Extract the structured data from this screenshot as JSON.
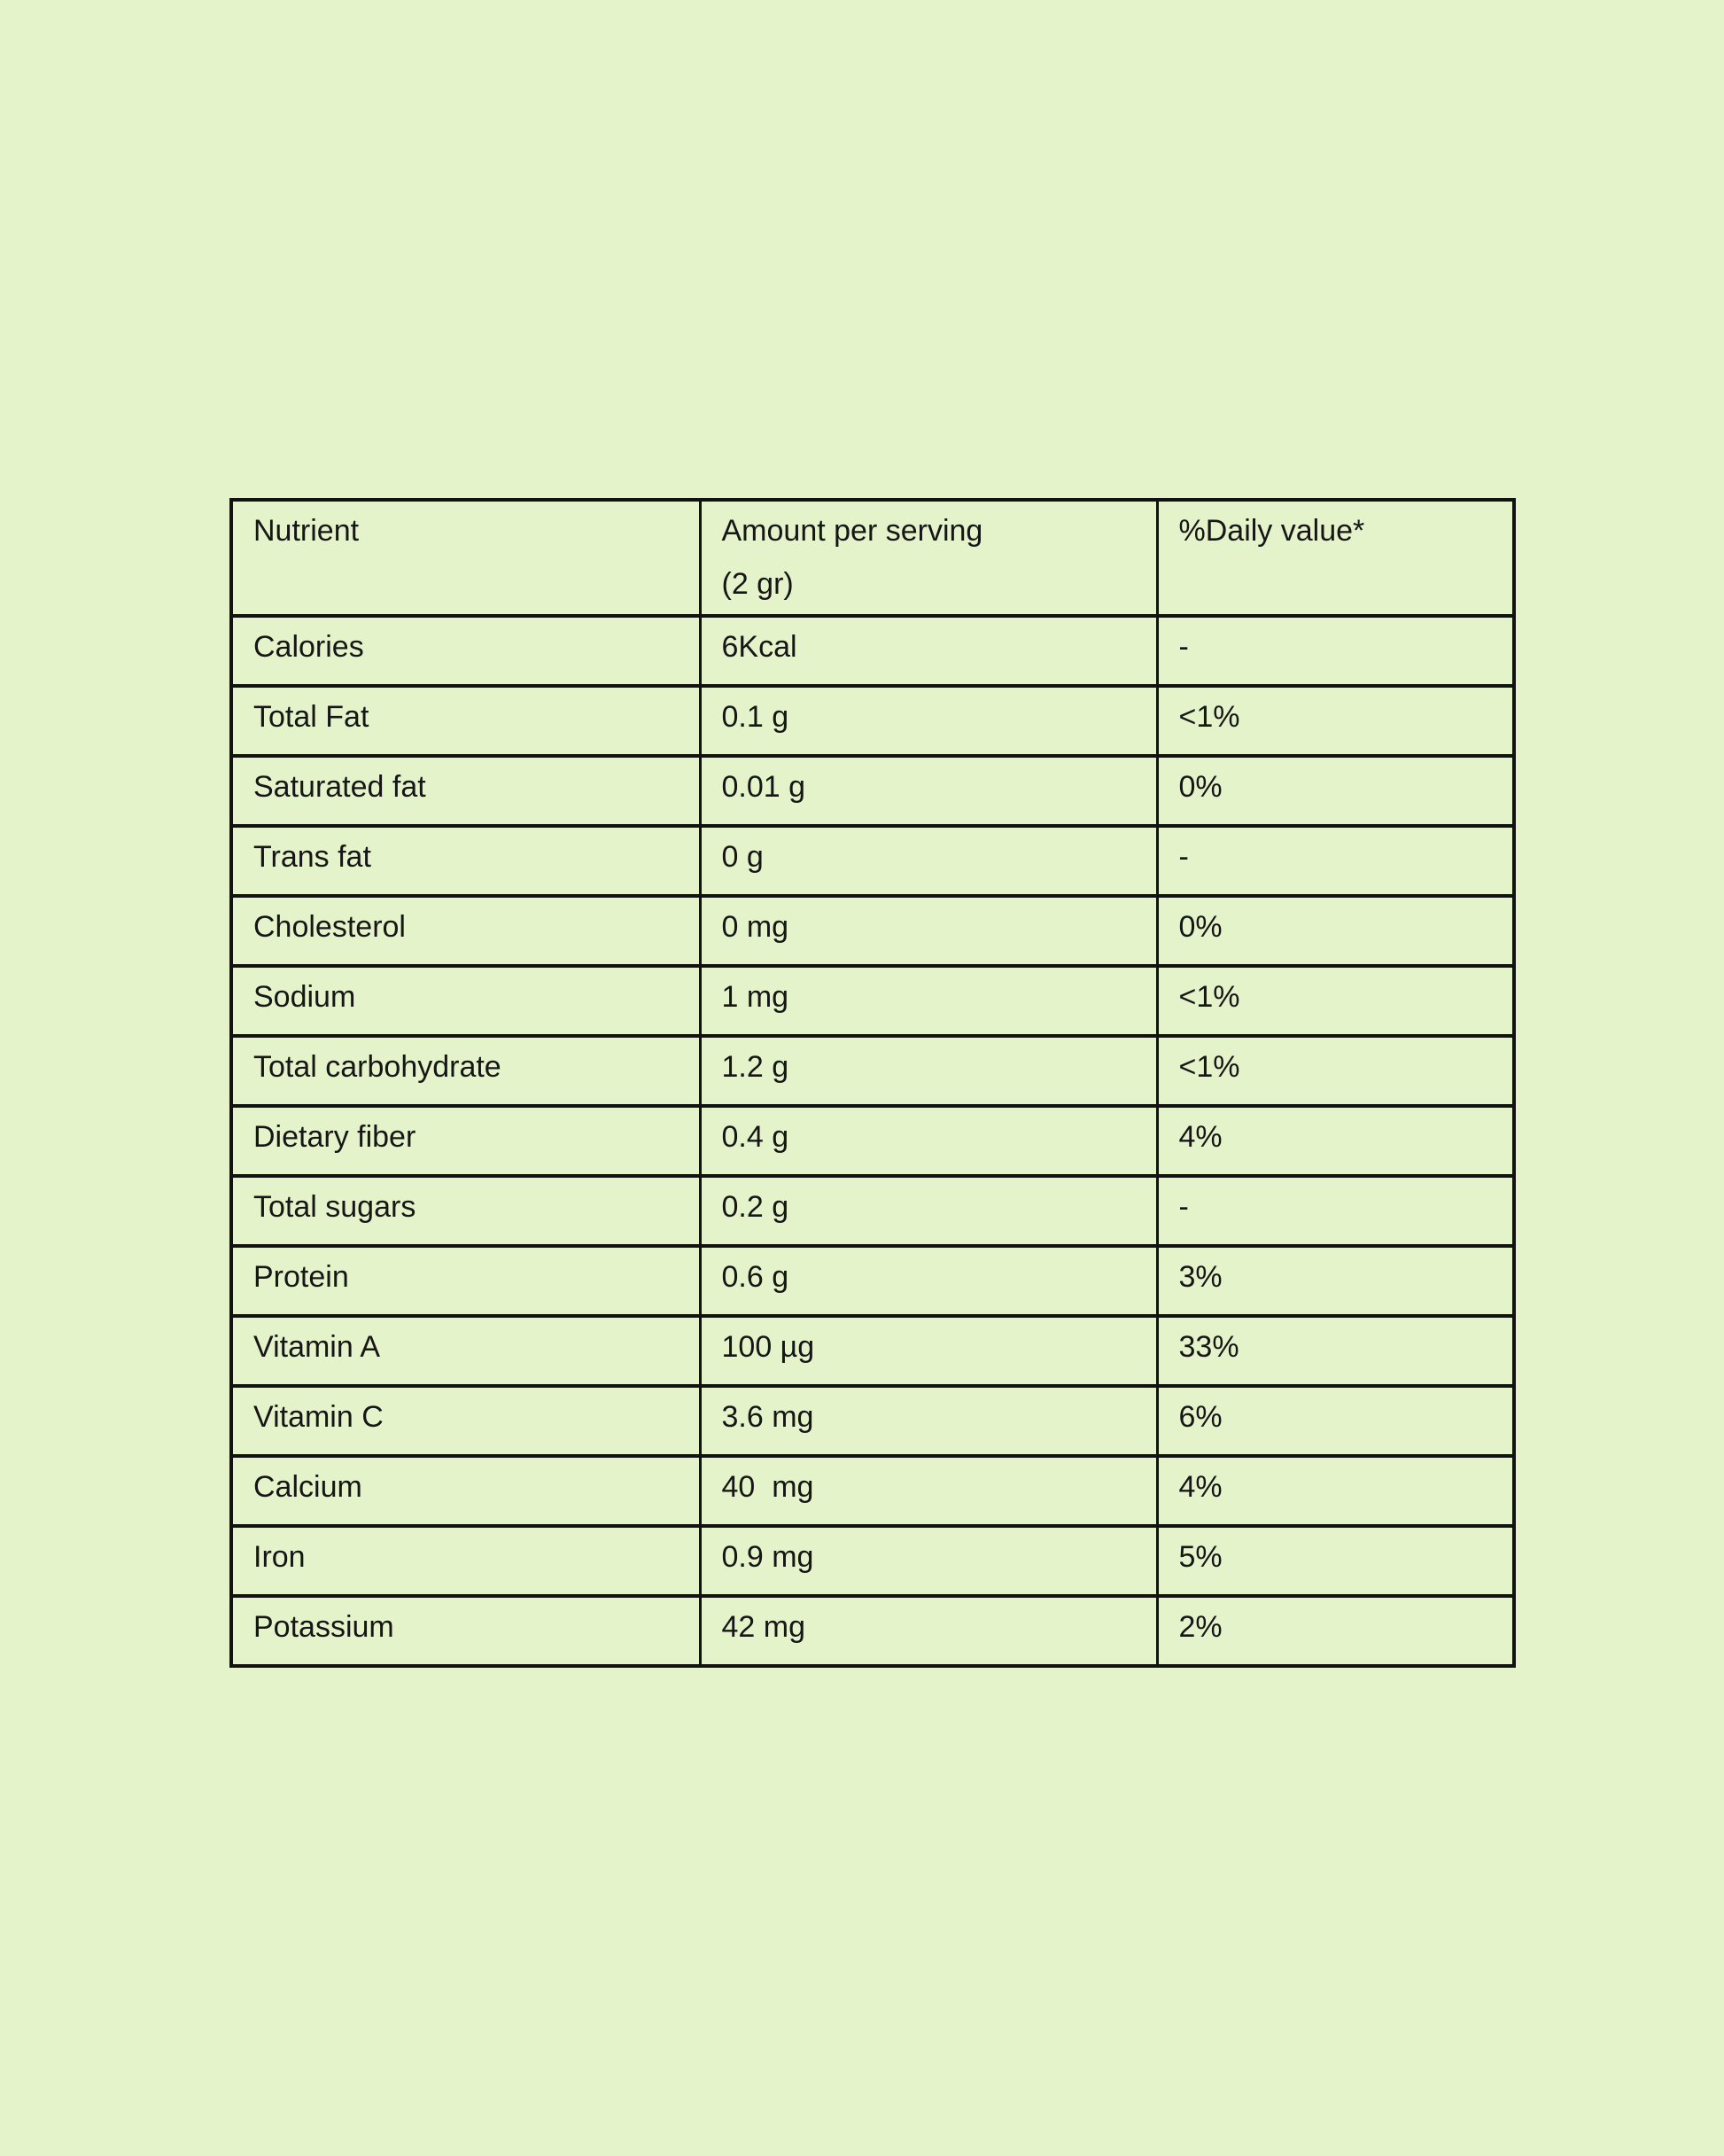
{
  "page": {
    "background_color": "#e4f3ca",
    "border_color": "#121212",
    "text_color": "#161616"
  },
  "table": {
    "columns": [
      "Nutrient",
      "Amount per serving\n(2 gr)",
      "%Daily value*"
    ],
    "rows": [
      [
        "Calories",
        "6Kcal",
        "-"
      ],
      [
        "Total Fat",
        "0.1 g",
        "<1%"
      ],
      [
        "Saturated fat",
        "0.01 g",
        "0%"
      ],
      [
        "Trans fat",
        "0 g",
        "-"
      ],
      [
        "Cholesterol",
        "0 mg",
        "0%"
      ],
      [
        "Sodium",
        "1 mg",
        "<1%"
      ],
      [
        "Total carbohydrate",
        "1.2 g",
        "<1%"
      ],
      [
        "Dietary fiber",
        "0.4 g",
        "4%"
      ],
      [
        "Total sugars",
        "0.2 g",
        "-"
      ],
      [
        "Protein",
        "0.6 g",
        "3%"
      ],
      [
        "Vitamin A",
        "100 µg",
        "33%"
      ],
      [
        "Vitamin C",
        "3.6 mg",
        "6%"
      ],
      [
        "Calcium",
        "40  mg",
        "4%"
      ],
      [
        "Iron",
        "0.9 mg",
        "5%"
      ],
      [
        "Potassium",
        "42 mg",
        "2%"
      ]
    ]
  }
}
